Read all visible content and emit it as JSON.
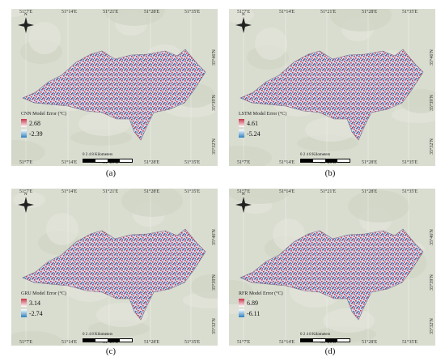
{
  "panels": [
    {
      "caption": "(a)",
      "legend_title": "CNN Model Error (°C)",
      "max": "2.68",
      "min": "-2.39"
    },
    {
      "caption": "(b)",
      "legend_title": "LSTM Model Error (°C)",
      "max": "4.61",
      "min": "-5.24"
    },
    {
      "caption": "(c)",
      "legend_title": "GRU Model Error (°C)",
      "max": "3.14",
      "min": "-2.74"
    },
    {
      "caption": "(d)",
      "legend_title": "RFR Model Error (°C)",
      "max": "6.89",
      "min": "-6.11"
    }
  ],
  "lon_ticks": [
    "51°7'E",
    "51°14'E",
    "51°21'E",
    "51°28'E",
    "51°35'E"
  ],
  "lat_ticks": [
    "35°46'N",
    "35°39'N",
    "35°32'N"
  ],
  "north_label": "N",
  "scale": {
    "ticks": [
      "0",
      "2",
      "4",
      "8"
    ],
    "unit": "Kilometers"
  },
  "colors": {
    "positive": "#c8344a",
    "negative": "#2a7fc0",
    "neutral": "#d8d6e6",
    "basemap": "#d9ddd0"
  }
}
